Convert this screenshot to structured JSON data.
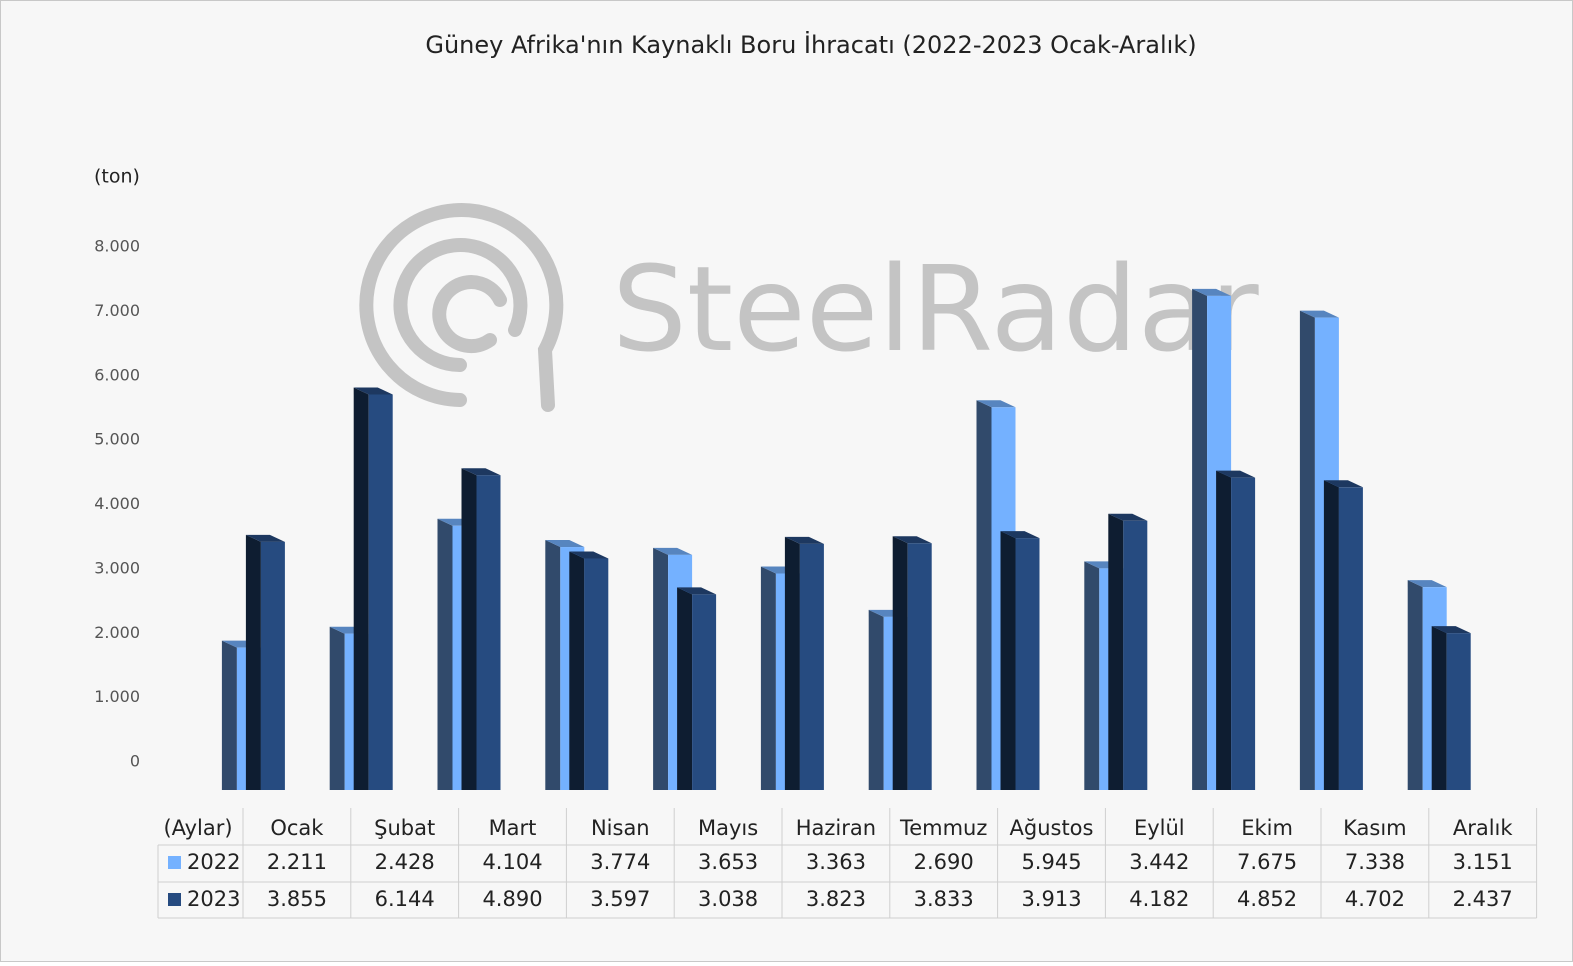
{
  "chart_data": {
    "type": "bar",
    "title": "Güney Afrika'nın Kaynaklı Boru İhracatı (2022-2023 Ocak-Aralık)",
    "y_label": "(ton)",
    "x_label": "(Aylar)",
    "watermark": "SteelRadar",
    "categories": [
      "Ocak",
      "Şubat",
      "Mart",
      "Nisan",
      "Mayıs",
      "Haziran",
      "Temmuz",
      "Ağustos",
      "Eylül",
      "Ekim",
      "Kasım",
      "Aralık"
    ],
    "series": [
      {
        "name": "2022",
        "color": "#74b1ff",
        "values": [
          2211,
          2428,
          4104,
          3774,
          3653,
          3363,
          2690,
          5945,
          3442,
          7675,
          7338,
          3151
        ],
        "value_labels": [
          "2.211",
          "2.428",
          "4.104",
          "3.774",
          "3.653",
          "3.363",
          "2.690",
          "5.945",
          "3.442",
          "7.675",
          "7.338",
          "3.151"
        ]
      },
      {
        "name": "2023",
        "color": "#264b80",
        "values": [
          3855,
          6144,
          4890,
          3597,
          3038,
          3823,
          3833,
          3913,
          4182,
          4852,
          4702,
          2437
        ],
        "value_labels": [
          "3.855",
          "6.144",
          "4.890",
          "3.597",
          "3.038",
          "3.823",
          "3.833",
          "3.913",
          "4.182",
          "4.852",
          "4.702",
          "2.437"
        ]
      }
    ],
    "ylim": [
      0,
      8000
    ],
    "yticks": [
      0,
      {
        "value": 1000,
        "label": "1.000"
      },
      {
        "value": 2000,
        "label": "2.000"
      },
      {
        "value": 3000,
        "label": "3.000"
      },
      {
        "value": 4000,
        "label": "4.000"
      },
      {
        "value": 5000,
        "label": "5.000"
      },
      {
        "value": 6000,
        "label": "6.000"
      },
      {
        "value": 7000,
        "label": "7.000"
      },
      {
        "value": 8000,
        "label": "8.000"
      }
    ]
  }
}
